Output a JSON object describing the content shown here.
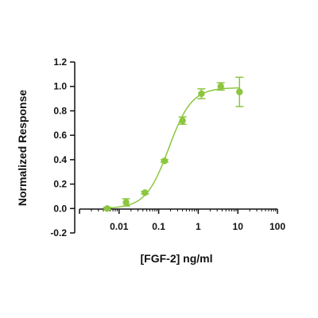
{
  "chart_data": {
    "type": "scatter",
    "xscale": "log",
    "xlabel": "[FGF-2] ng/ml",
    "ylabel": "Normalized Response",
    "xlim": [
      0.001,
      100
    ],
    "ylim": [
      -0.2,
      1.2
    ],
    "x_ticks": [
      0.01,
      0.1,
      1,
      10,
      100
    ],
    "x_tick_labels": [
      "0.01",
      "0.1",
      "1",
      "10",
      "100"
    ],
    "y_ticks": [
      -0.2,
      0.0,
      0.2,
      0.4,
      0.6,
      0.8,
      1.0,
      1.2
    ],
    "y_tick_labels": [
      "-0.2",
      "0.0",
      "0.2",
      "0.4",
      "0.6",
      "0.8",
      "1.0",
      "1.2"
    ],
    "grid": false,
    "legend": "none",
    "series": [
      {
        "color": "#8cc63f",
        "points": [
          {
            "x": 0.005,
            "y": 0.0,
            "err": 0.01
          },
          {
            "x": 0.015,
            "y": 0.05,
            "err": 0.03
          },
          {
            "x": 0.045,
            "y": 0.13,
            "err": 0.01
          },
          {
            "x": 0.14,
            "y": 0.39,
            "err": 0.01
          },
          {
            "x": 0.4,
            "y": 0.72,
            "err": 0.03
          },
          {
            "x": 1.2,
            "y": 0.94,
            "err": 0.04
          },
          {
            "x": 3.7,
            "y": 1.0,
            "err": 0.03
          },
          {
            "x": 11,
            "y": 0.955,
            "err": 0.12
          }
        ],
        "fit": {
          "model": "4PL",
          "bottom": 0.0,
          "top": 0.99,
          "ec50": 0.18,
          "hill": 1.5,
          "x_range": [
            0.004,
            11
          ]
        }
      }
    ]
  }
}
